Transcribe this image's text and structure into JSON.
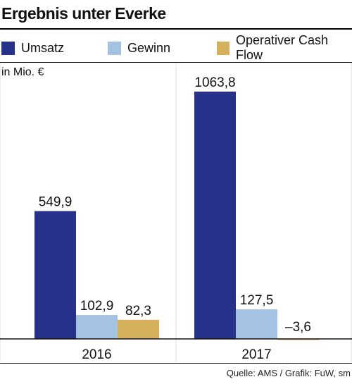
{
  "title": "Ergebnis unter Everke",
  "unit": "in Mio. €",
  "source": "Quelle: AMS / Grafik: FuW, sm",
  "legend": [
    {
      "label": "Umsatz",
      "color": "#27338a"
    },
    {
      "label": "Gewinn",
      "color": "#a4c3e2"
    },
    {
      "label": "Operativer Cash Flow",
      "color": "#d5b15e"
    }
  ],
  "chart_data": {
    "type": "bar",
    "categories": [
      "2016",
      "2017"
    ],
    "series": [
      {
        "name": "Umsatz",
        "values": [
          549.9,
          1063.8
        ],
        "labels": [
          "549,9",
          "1063,8"
        ],
        "color": "#27338a"
      },
      {
        "name": "Gewinn",
        "values": [
          102.9,
          127.5
        ],
        "labels": [
          "102,9",
          "127,5"
        ],
        "color": "#a4c3e2"
      },
      {
        "name": "Operativer Cash Flow",
        "values": [
          82.3,
          -3.6
        ],
        "labels": [
          "82,3",
          "–3,6"
        ],
        "color": "#d5b15e"
      }
    ],
    "ylabel": "in Mio. €",
    "grid": false,
    "legend_position": "top"
  }
}
